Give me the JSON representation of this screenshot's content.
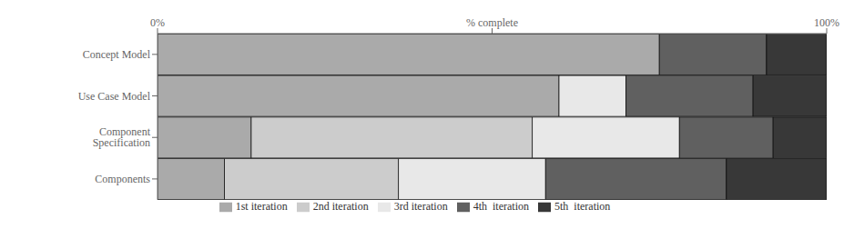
{
  "chart_data": {
    "type": "bar",
    "orientation": "horizontal",
    "stacked": true,
    "categories": [
      "Concept Model",
      "Use Case Model",
      "Component Specification",
      "Components"
    ],
    "series": [
      {
        "name": "1st iteration",
        "color": "#aaaaaa",
        "values": [
          75,
          60,
          14,
          10
        ]
      },
      {
        "name": "2nd iteration",
        "color": "#cccccc",
        "values": [
          0,
          0,
          42,
          26
        ]
      },
      {
        "name": "3rd iteration",
        "color": "#e8e8e8",
        "values": [
          0,
          10,
          22,
          22
        ]
      },
      {
        "name": "4th  iteration",
        "color": "#606060",
        "values": [
          16,
          19,
          14,
          27
        ]
      },
      {
        "name": "5th  iteration",
        "color": "#383838",
        "values": [
          9,
          11,
          8,
          15
        ]
      }
    ],
    "xlim": [
      0,
      100
    ],
    "xticks": [
      {
        "value": 0,
        "label": "0%"
      },
      {
        "value": 50,
        "label": "% complete"
      },
      {
        "value": 100,
        "label": "100%"
      }
    ],
    "legend": "bottom"
  }
}
